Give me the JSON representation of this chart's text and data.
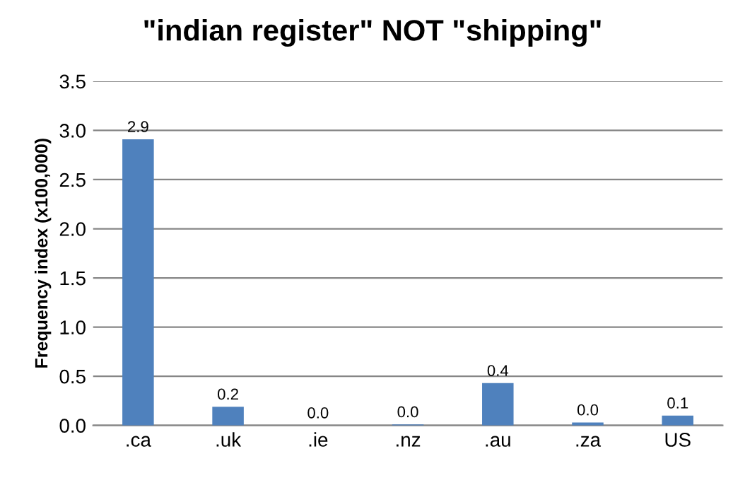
{
  "chart_data": {
    "type": "bar",
    "title": "\"indian register\" NOT \"shipping\"",
    "ylabel": "Frequency index (x100,000)",
    "categories": [
      ".ca",
      ".uk",
      ".ie",
      ".nz",
      ".au",
      ".za",
      "US"
    ],
    "values": [
      2.91,
      0.19,
      0.0,
      0.01,
      0.43,
      0.03,
      0.1
    ],
    "value_labels": [
      "2.9",
      "0.2",
      "0.0",
      "0.0",
      "0.4",
      "0.0",
      "0.1"
    ],
    "color": "#4f81bd",
    "ylim": [
      0,
      3.5
    ],
    "yticks": [
      {
        "value": 0,
        "label": "0.0"
      },
      {
        "value": 0.5,
        "label": "0.5"
      },
      {
        "value": 1,
        "label": "1.0"
      },
      {
        "value": 1.5,
        "label": "1.5"
      },
      {
        "value": 2,
        "label": "2.0"
      },
      {
        "value": 2.5,
        "label": "2.5"
      },
      {
        "value": 3,
        "label": "3.0"
      },
      {
        "value": 3.5,
        "label": "3.5"
      }
    ],
    "grid": "y",
    "legend": false
  }
}
